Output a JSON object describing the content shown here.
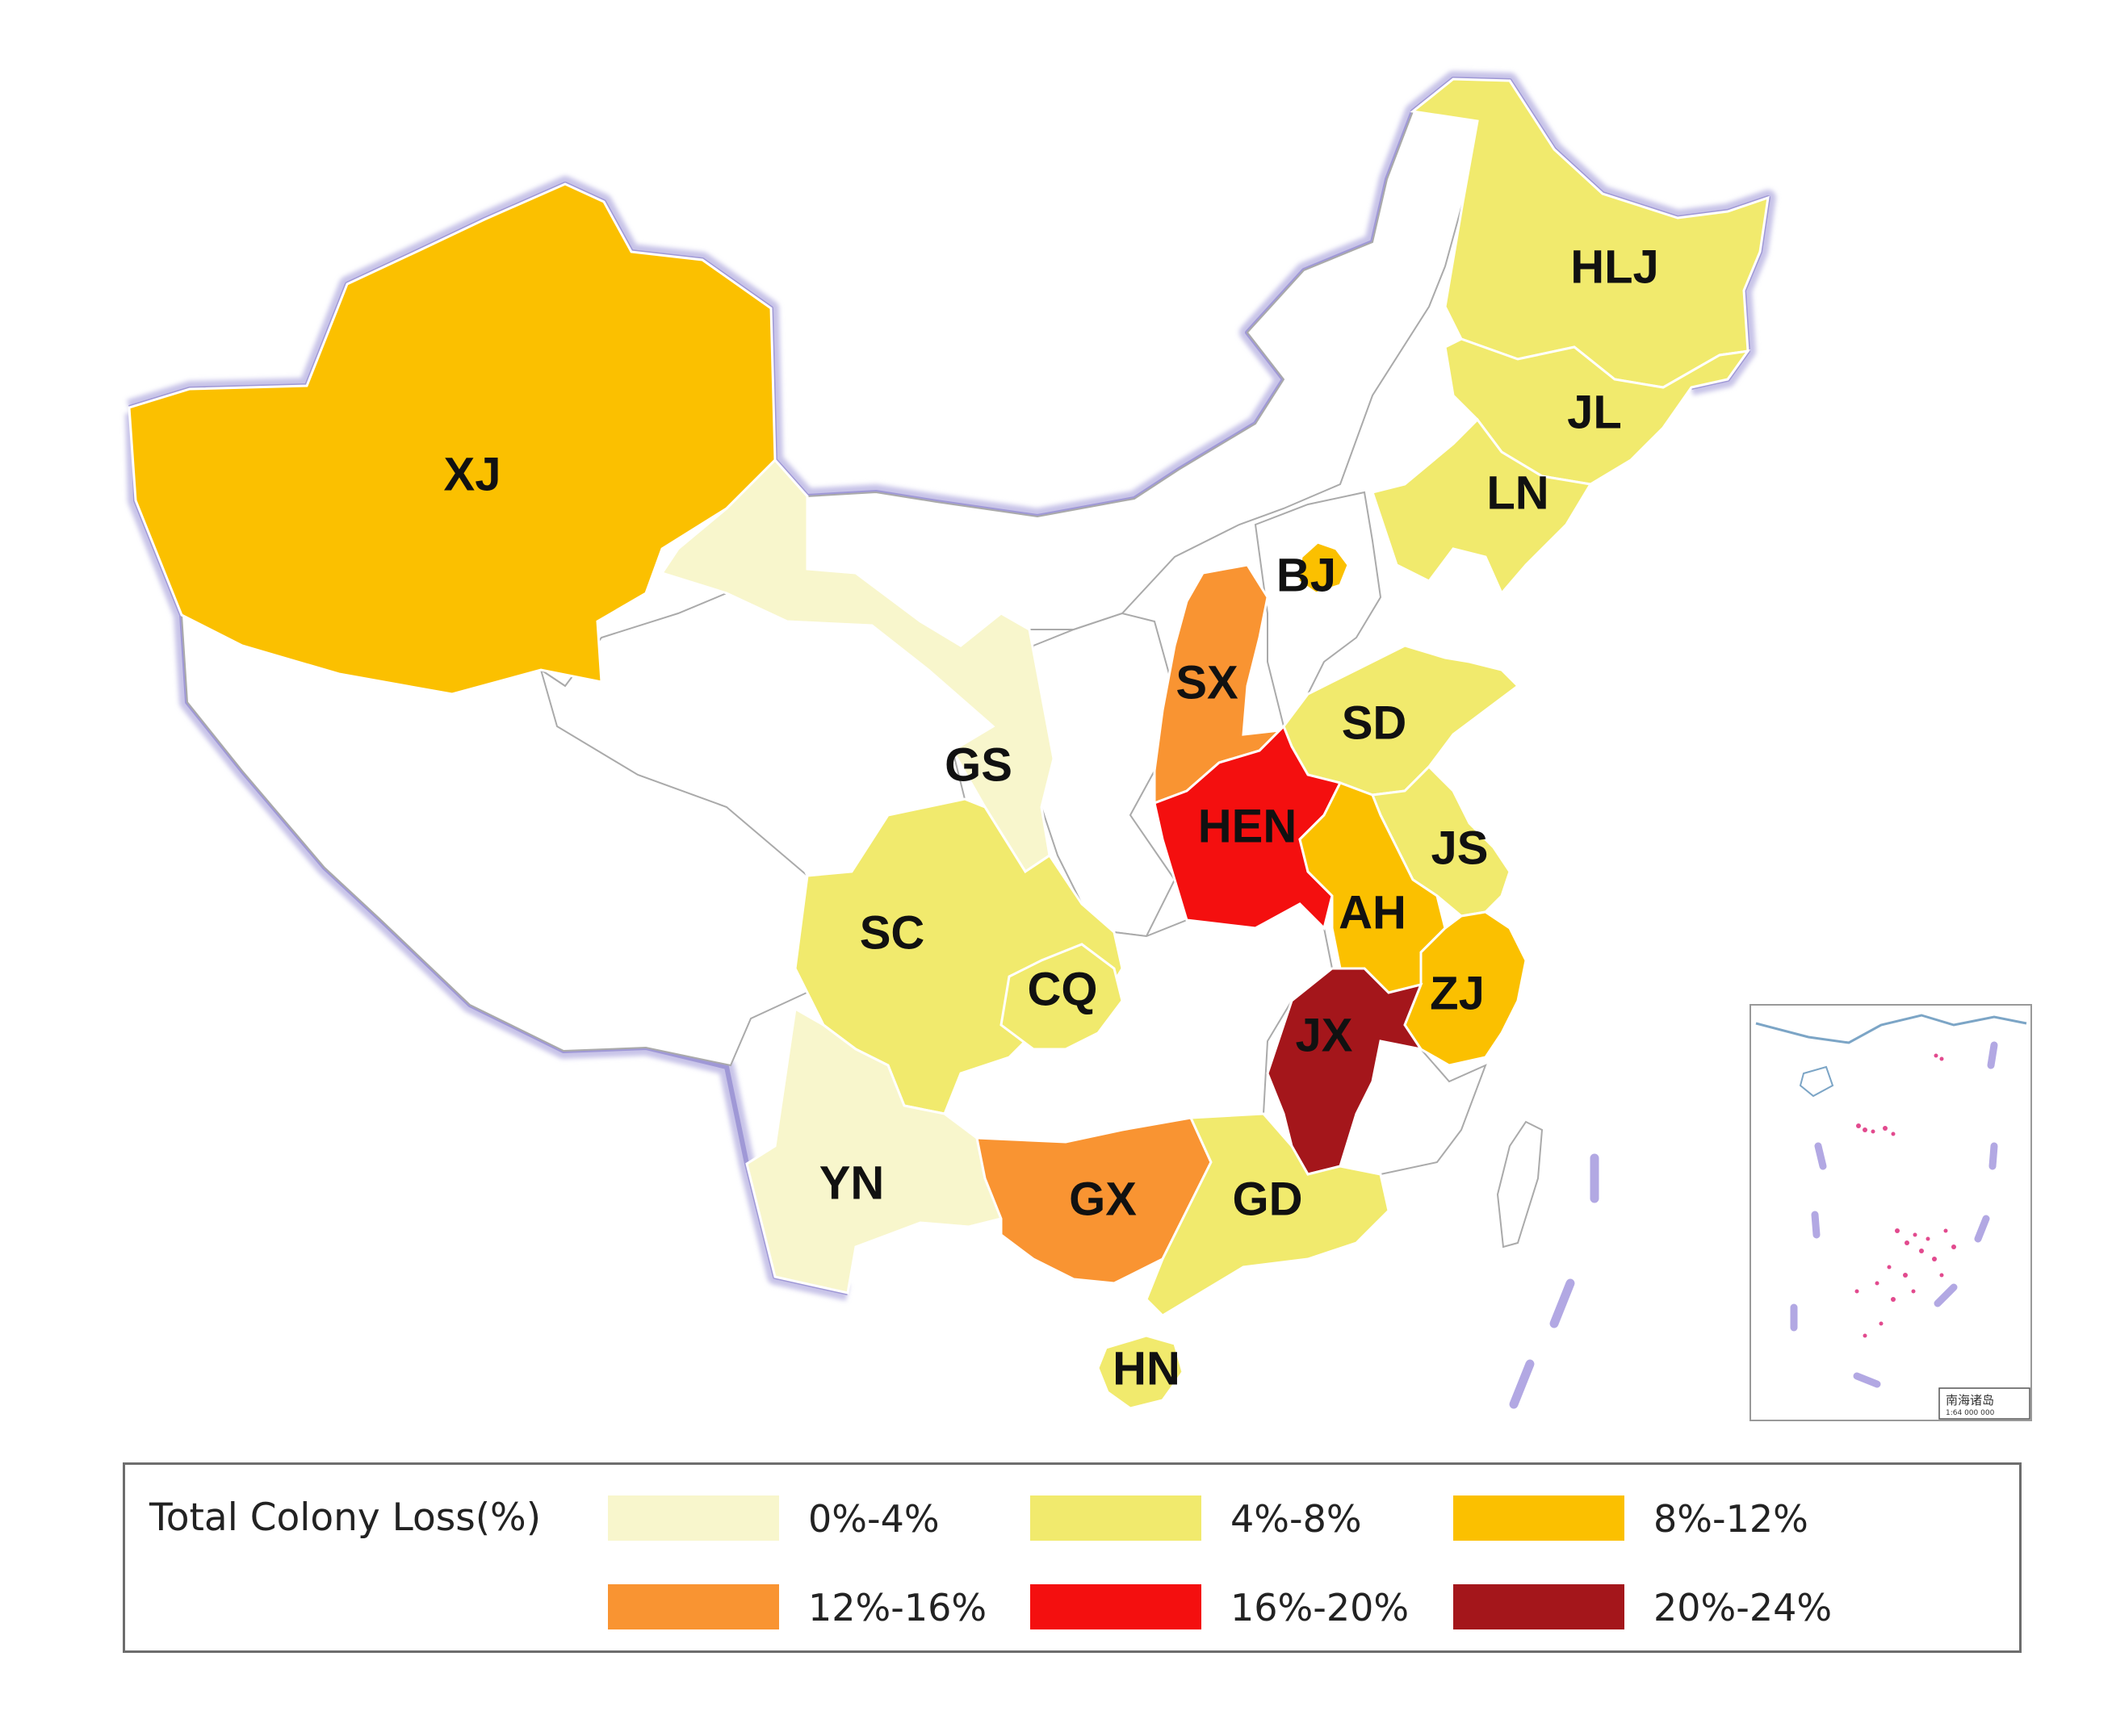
{
  "map": {
    "provinces": [
      {
        "code": "XJ",
        "class_label": "8%-12%"
      },
      {
        "code": "HLJ",
        "class_label": "4%-8%"
      },
      {
        "code": "JL",
        "class_label": "4%-8%"
      },
      {
        "code": "LN",
        "class_label": "4%-8%"
      },
      {
        "code": "BJ",
        "class_label": "8%-12%"
      },
      {
        "code": "SX",
        "class_label": "12%-16%"
      },
      {
        "code": "SD",
        "class_label": "4%-8%"
      },
      {
        "code": "GS",
        "class_label": "0%-4%"
      },
      {
        "code": "HEN",
        "class_label": "16%-20%"
      },
      {
        "code": "JS",
        "class_label": "4%-8%"
      },
      {
        "code": "SC",
        "class_label": "4%-8%"
      },
      {
        "code": "AH",
        "class_label": "8%-12%"
      },
      {
        "code": "CQ",
        "class_label": "4%-8%"
      },
      {
        "code": "ZJ",
        "class_label": "8%-12%"
      },
      {
        "code": "JX",
        "class_label": "20%-24%"
      },
      {
        "code": "YN",
        "class_label": "0%-4%"
      },
      {
        "code": "GX",
        "class_label": "12%-16%"
      },
      {
        "code": "GD",
        "class_label": "4%-8%"
      },
      {
        "code": "HN",
        "class_label": "4%-8%"
      }
    ],
    "inset": {
      "caption": "南海诸岛",
      "scale": "1:64 000 000"
    }
  },
  "legend": {
    "title": "Total Colony Loss(%)",
    "classes": [
      {
        "label": "0%-4%",
        "color": "#f8f6cc"
      },
      {
        "label": "4%-8%",
        "color": "#f1ea6d"
      },
      {
        "label": "8%-12%",
        "color": "#fbc000"
      },
      {
        "label": "12%-16%",
        "color": "#f99432"
      },
      {
        "label": "16%-20%",
        "color": "#f40f0f"
      },
      {
        "label": "20%-24%",
        "color": "#a4161b"
      }
    ]
  }
}
